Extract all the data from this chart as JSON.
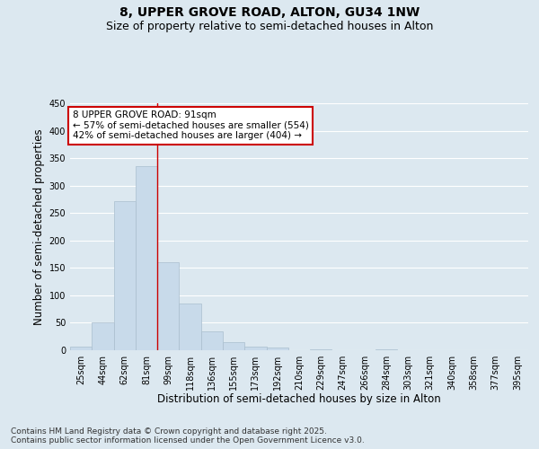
{
  "title_line1": "8, UPPER GROVE ROAD, ALTON, GU34 1NW",
  "title_line2": "Size of property relative to semi-detached houses in Alton",
  "xlabel": "Distribution of semi-detached houses by size in Alton",
  "ylabel": "Number of semi-detached properties",
  "categories": [
    "25sqm",
    "44sqm",
    "62sqm",
    "81sqm",
    "99sqm",
    "118sqm",
    "136sqm",
    "155sqm",
    "173sqm",
    "192sqm",
    "210sqm",
    "229sqm",
    "247sqm",
    "266sqm",
    "284sqm",
    "303sqm",
    "321sqm",
    "340sqm",
    "358sqm",
    "377sqm",
    "395sqm"
  ],
  "values": [
    7,
    50,
    272,
    335,
    160,
    85,
    35,
    15,
    7,
    5,
    0,
    2,
    0,
    0,
    2,
    0,
    0,
    0,
    0,
    0,
    0
  ],
  "bar_color": "#c8daea",
  "bar_edge_color": "#aabece",
  "property_bin_index": 3,
  "annotation_text": "8 UPPER GROVE ROAD: 91sqm\n← 57% of semi-detached houses are smaller (554)\n42% of semi-detached houses are larger (404) →",
  "annotation_box_color": "#ffffff",
  "annotation_box_edge_color": "#cc0000",
  "vline_color": "#cc0000",
  "ylim": [
    0,
    450
  ],
  "yticks": [
    0,
    50,
    100,
    150,
    200,
    250,
    300,
    350,
    400,
    450
  ],
  "footnote": "Contains HM Land Registry data © Crown copyright and database right 2025.\nContains public sector information licensed under the Open Government Licence v3.0.",
  "background_color": "#dce8f0",
  "plot_background_color": "#dce8f0",
  "grid_color": "#ffffff",
  "title_fontsize": 10,
  "subtitle_fontsize": 9,
  "axis_label_fontsize": 8.5,
  "tick_fontsize": 7,
  "annotation_fontsize": 7.5,
  "footnote_fontsize": 6.5
}
